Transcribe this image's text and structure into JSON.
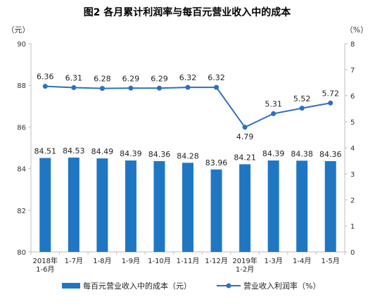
{
  "chart_data": {
    "type": "bar+line",
    "title": "图2 各月累计利润率与每百元营业收入中的成本",
    "left_unit": "（元）",
    "right_unit": "（%）",
    "left_ylim": [
      80,
      90
    ],
    "left_ticks": [
      80,
      82,
      84,
      86,
      88,
      90
    ],
    "right_ylim": [
      0,
      8
    ],
    "right_ticks": [
      0,
      1,
      2,
      3,
      4,
      5,
      6,
      7,
      8
    ],
    "categories": [
      [
        "2018年",
        "1-6月"
      ],
      [
        "1-7月"
      ],
      [
        "1-8月"
      ],
      [
        "1-9月"
      ],
      [
        "1-10月"
      ],
      [
        "1-11月"
      ],
      [
        "1-12月"
      ],
      [
        "2019年",
        "1-2月"
      ],
      [
        "1-3月"
      ],
      [
        "1-4月"
      ],
      [
        "1-5月"
      ]
    ],
    "series": [
      {
        "name": "每百元营业收入中的成本（元）",
        "type": "bar",
        "axis": "left",
        "color": "#1f77c4",
        "values": [
          84.51,
          84.53,
          84.49,
          84.39,
          84.36,
          84.28,
          83.96,
          84.21,
          84.39,
          84.38,
          84.36
        ],
        "labels": [
          "84.51",
          "84.53",
          "84.49",
          "84.39",
          "84.36",
          "84.28",
          "83.96",
          "84.21",
          "84.39",
          "84.38",
          "84.36"
        ]
      },
      {
        "name": "营业收入利润率（%）",
        "type": "line",
        "axis": "right",
        "color": "#2e6fc0",
        "values": [
          6.36,
          6.31,
          6.28,
          6.29,
          6.29,
          6.32,
          6.32,
          4.79,
          5.31,
          5.52,
          5.72
        ],
        "labels": [
          "6.36",
          "6.31",
          "6.28",
          "6.29",
          "6.29",
          "6.32",
          "6.32",
          "4.79",
          "5.31",
          "5.52",
          "5.72"
        ]
      }
    ],
    "legend_position": "bottom",
    "grid": false
  }
}
